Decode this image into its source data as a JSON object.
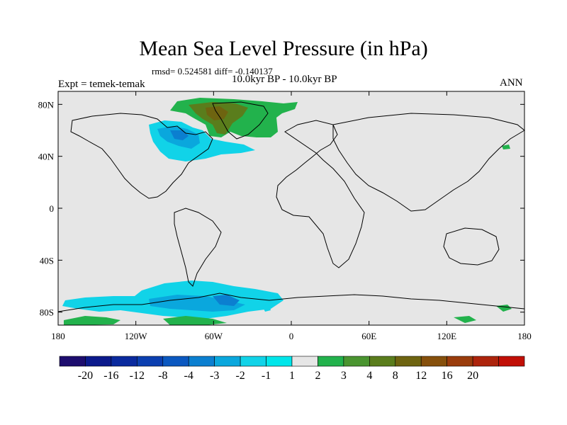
{
  "title": "Mean Sea Level Pressure (in hPa)",
  "stats": "rmsd= 0.524581 diff= -0.140137",
  "subtitle": "10.0kyr BP - 10.0kyr BP",
  "left_label": "Expt = temek-temak",
  "right_label": "ANN",
  "chart_data": {
    "type": "heatmap",
    "title": "Mean Sea Level Pressure (in hPa)",
    "projection": "cylindrical-equidistant",
    "x_range": [
      -180,
      180
    ],
    "y_range": [
      -90,
      90
    ],
    "x_ticks": [
      {
        "value": -180,
        "label": "180"
      },
      {
        "value": -120,
        "label": "120W"
      },
      {
        "value": -60,
        "label": "60W"
      },
      {
        "value": 0,
        "label": "0"
      },
      {
        "value": 60,
        "label": "60E"
      },
      {
        "value": 120,
        "label": "120E"
      },
      {
        "value": 180,
        "label": "180"
      }
    ],
    "y_ticks": [
      {
        "value": 80,
        "label": "80N"
      },
      {
        "value": 40,
        "label": "40N"
      },
      {
        "value": 0,
        "label": "0"
      },
      {
        "value": -40,
        "label": "40S"
      },
      {
        "value": -80,
        "label": "80S"
      }
    ],
    "colorbar": {
      "boundaries": [
        "-20",
        "-16",
        "-12",
        "-8",
        "-4",
        "-3",
        "-2",
        "-1",
        "1",
        "2",
        "3",
        "4",
        "8",
        "12",
        "16",
        "20"
      ],
      "colors": [
        "#1d0d6e",
        "#0c1a8c",
        "#0a2a9e",
        "#0b3fb0",
        "#0b58c0",
        "#0b7fd0",
        "#0aa7dd",
        "#11d3e8",
        "#00e6ea",
        "#e6e6e6",
        "#22b24c",
        "#4a9530",
        "#5a7d1c",
        "#6e6410",
        "#86500c",
        "#9a3c0c",
        "#ad240c",
        "#c10f06"
      ]
    },
    "regions": [
      {
        "name": "greenland-positive",
        "level": "2 to 4",
        "approx_lon": [
          -75,
          -10
        ],
        "approx_lat": [
          62,
          84
        ]
      },
      {
        "name": "hudson-bay-negative",
        "level": "-1 to -3",
        "approx_lon": [
          -110,
          -50
        ],
        "approx_lat": [
          44,
          72
        ]
      },
      {
        "name": "weddell-sea-negative",
        "level": "-1 to -3",
        "approx_lon": [
          -120,
          -10
        ],
        "approx_lat": [
          -88,
          -62
        ]
      },
      {
        "name": "antarctic-coast-positive",
        "level": "1 to 2",
        "approx_lon": [
          -180,
          -30
        ],
        "approx_lat": [
          -90,
          -80
        ]
      }
    ]
  }
}
